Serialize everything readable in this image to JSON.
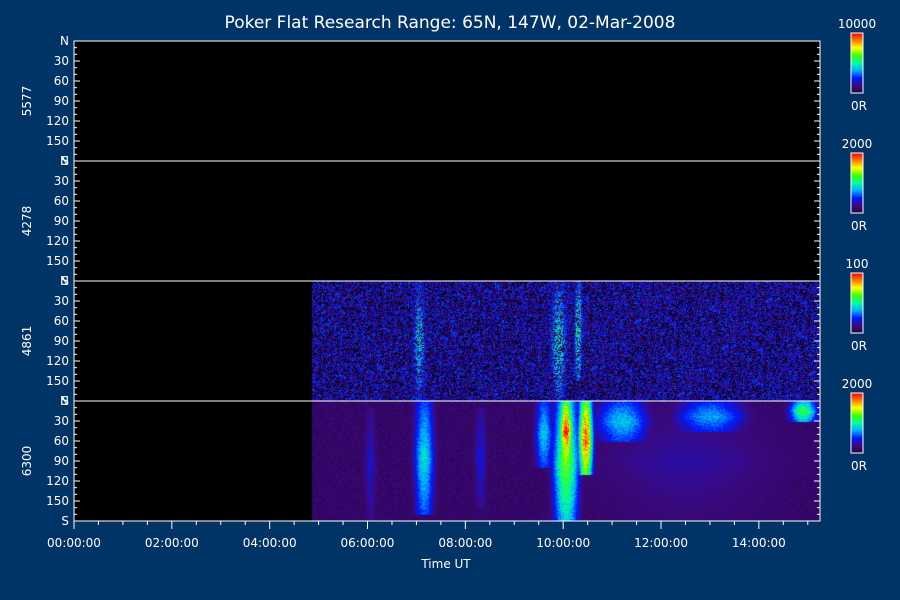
{
  "colors": {
    "background": "#003366",
    "panel_background": "#000000",
    "axis": "#ffffff",
    "text": "#ffffff",
    "colorbar_stops": [
      "#2a0040",
      "#3a0a80",
      "#0018ff",
      "#00b0ff",
      "#00ffa0",
      "#40ff00",
      "#ffff00",
      "#ff8000",
      "#ff0000"
    ]
  },
  "chart_data": {
    "type": "heatmap",
    "title": "Poker Flat Research Range: 65N, 147W, 02-Mar-2008",
    "xlabel": "Time UT",
    "x_range_hours": [
      0.0,
      15.25
    ],
    "x_ticks": [
      "00:00:00",
      "02:00:00",
      "04:00:00",
      "06:00:00",
      "08:00:00",
      "10:00:00",
      "12:00:00",
      "14:00:00"
    ],
    "y_ticks": [
      "N",
      "30",
      "60",
      "90",
      "120",
      "150",
      "S"
    ],
    "y_range_deg": [
      0,
      180
    ],
    "panels": [
      {
        "wavelength": "5577",
        "colorbar_max": "10000",
        "colorbar_min": "0R",
        "data_start_hours": null,
        "features": []
      },
      {
        "wavelength": "4278",
        "colorbar_max": "2000",
        "colorbar_min": "0R",
        "data_start_hours": null,
        "features": []
      },
      {
        "wavelength": "4861",
        "colorbar_max": "100",
        "colorbar_min": "0R",
        "data_start_hours": 4.85,
        "noise_level": 0.25,
        "features": [
          {
            "t_hours": 7.05,
            "width_hours": 0.35,
            "y_from_deg": 0,
            "y_to_deg": 180,
            "intensity": 0.42
          },
          {
            "t_hours": 9.9,
            "width_hours": 0.45,
            "y_from_deg": 0,
            "y_to_deg": 180,
            "intensity": 0.45
          },
          {
            "t_hours": 10.3,
            "width_hours": 0.2,
            "y_from_deg": 0,
            "y_to_deg": 150,
            "intensity": 0.5
          }
        ]
      },
      {
        "wavelength": "6300",
        "colorbar_max": "2000",
        "colorbar_min": "0R",
        "data_start_hours": 4.85,
        "noise_level": 0.1,
        "features": [
          {
            "t_hours": 6.05,
            "width_hours": 0.3,
            "y_from_deg": 10,
            "y_to_deg": 180,
            "intensity": 0.2
          },
          {
            "t_hours": 7.15,
            "width_hours": 0.45,
            "y_from_deg": 0,
            "y_to_deg": 170,
            "intensity": 0.45
          },
          {
            "t_hours": 8.3,
            "width_hours": 0.3,
            "y_from_deg": 10,
            "y_to_deg": 160,
            "intensity": 0.22
          },
          {
            "t_hours": 9.6,
            "width_hours": 0.4,
            "y_from_deg": 0,
            "y_to_deg": 100,
            "intensity": 0.42
          },
          {
            "t_hours": 10.05,
            "width_hours": 0.55,
            "y_from_deg": 0,
            "y_to_deg": 180,
            "intensity": 0.65
          },
          {
            "t_hours": 10.05,
            "width_hours": 0.3,
            "y_from_deg": 0,
            "y_to_deg": 90,
            "intensity": 0.95
          },
          {
            "t_hours": 10.45,
            "width_hours": 0.3,
            "y_from_deg": 0,
            "y_to_deg": 110,
            "intensity": 0.95
          },
          {
            "t_hours": 11.2,
            "width_hours": 1.2,
            "y_from_deg": 0,
            "y_to_deg": 60,
            "intensity": 0.42
          },
          {
            "t_hours": 13.0,
            "width_hours": 1.6,
            "y_from_deg": 0,
            "y_to_deg": 45,
            "intensity": 0.38
          },
          {
            "t_hours": 14.9,
            "width_hours": 0.6,
            "y_from_deg": 0,
            "y_to_deg": 30,
            "intensity": 0.6
          },
          {
            "t_hours": 12.5,
            "width_hours": 5.5,
            "y_from_deg": 0,
            "y_to_deg": 180,
            "intensity": 0.16
          }
        ]
      }
    ]
  }
}
